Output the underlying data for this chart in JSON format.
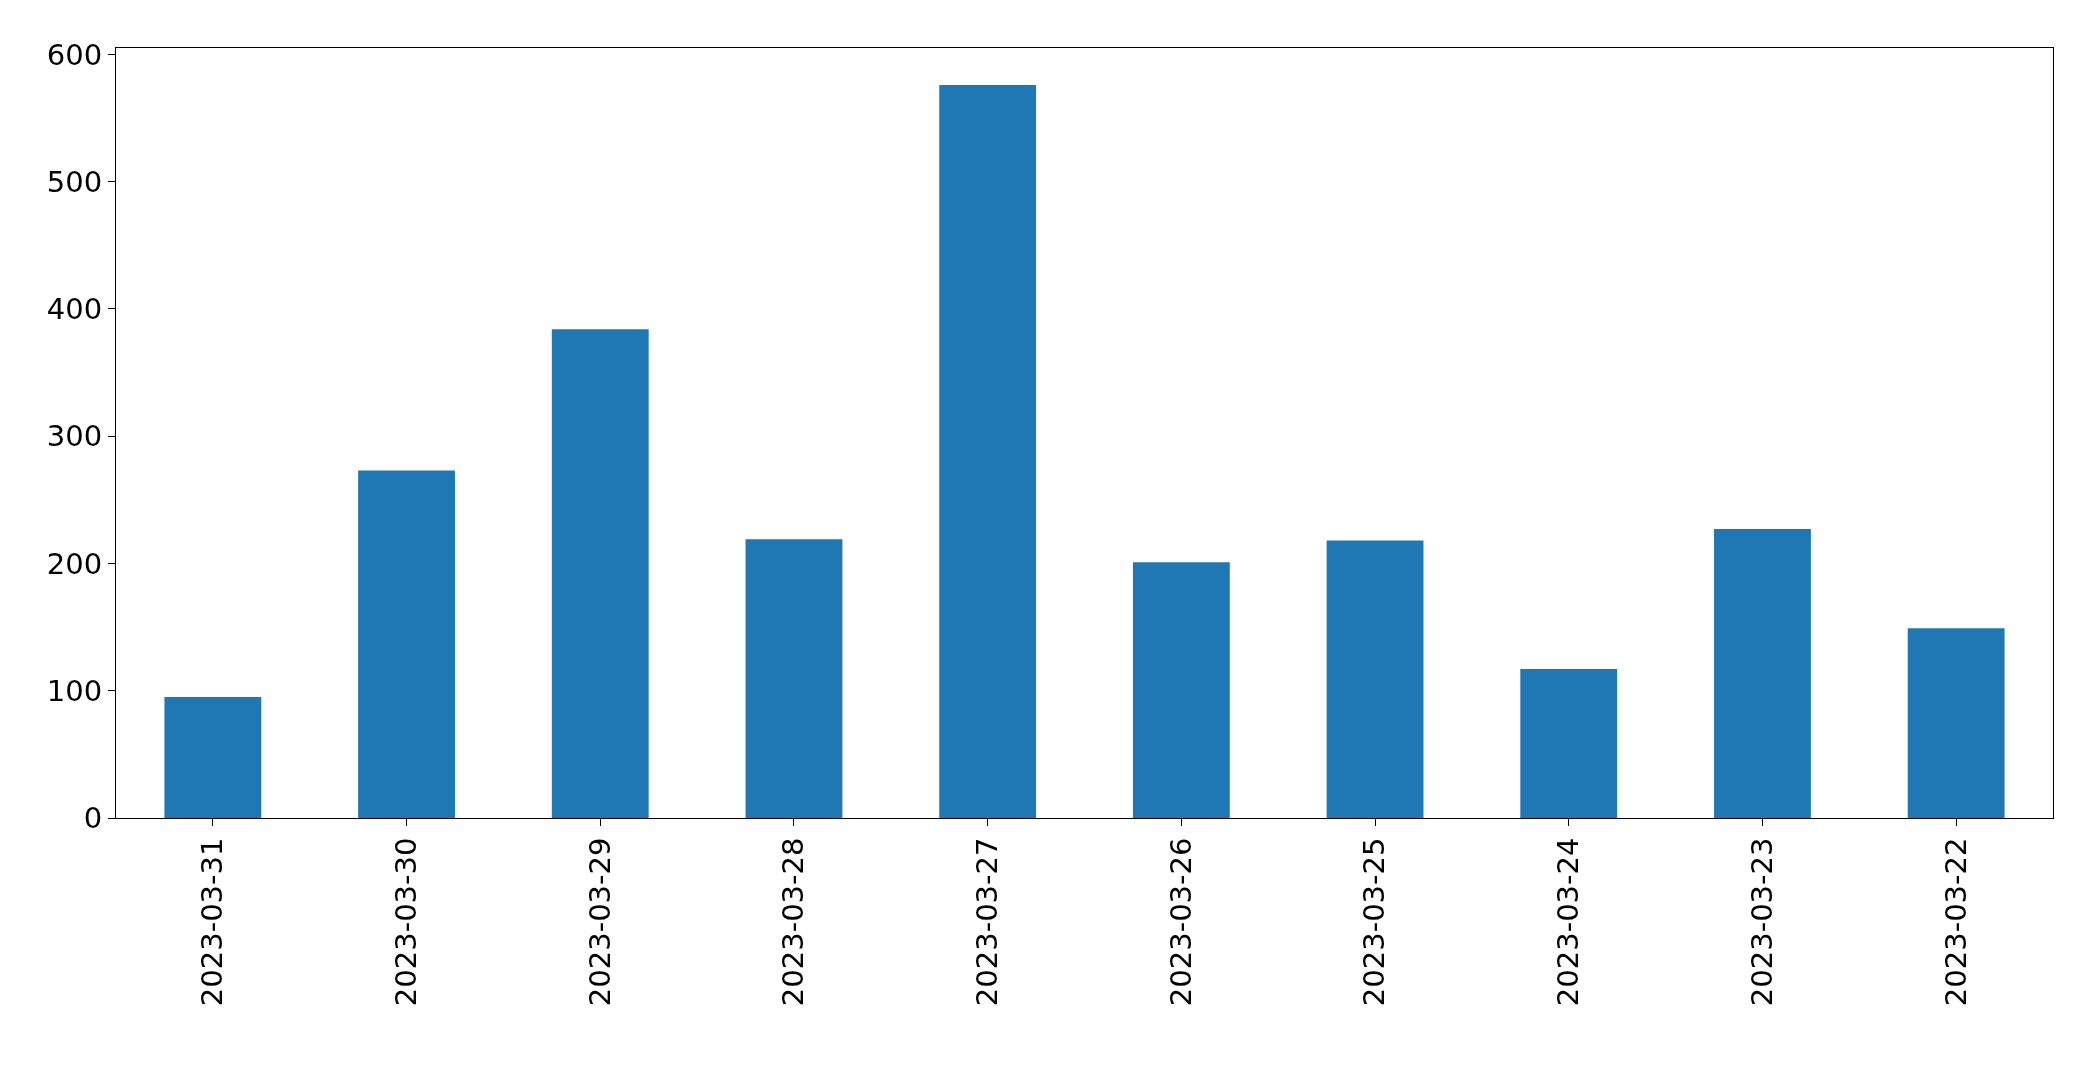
{
  "chart_data": {
    "type": "bar",
    "categories": [
      "2023-03-31",
      "2023-03-30",
      "2023-03-29",
      "2023-03-28",
      "2023-03-27",
      "2023-03-26",
      "2023-03-25",
      "2023-03-24",
      "2023-03-23",
      "2023-03-22"
    ],
    "values": [
      95,
      273,
      384,
      219,
      576,
      201,
      218,
      117,
      227,
      149
    ],
    "color": "#1f77b4",
    "ylim": [
      0,
      605
    ],
    "yticks": [
      0,
      100,
      200,
      300,
      400,
      500,
      600
    ],
    "grid": false,
    "legend": false
  }
}
